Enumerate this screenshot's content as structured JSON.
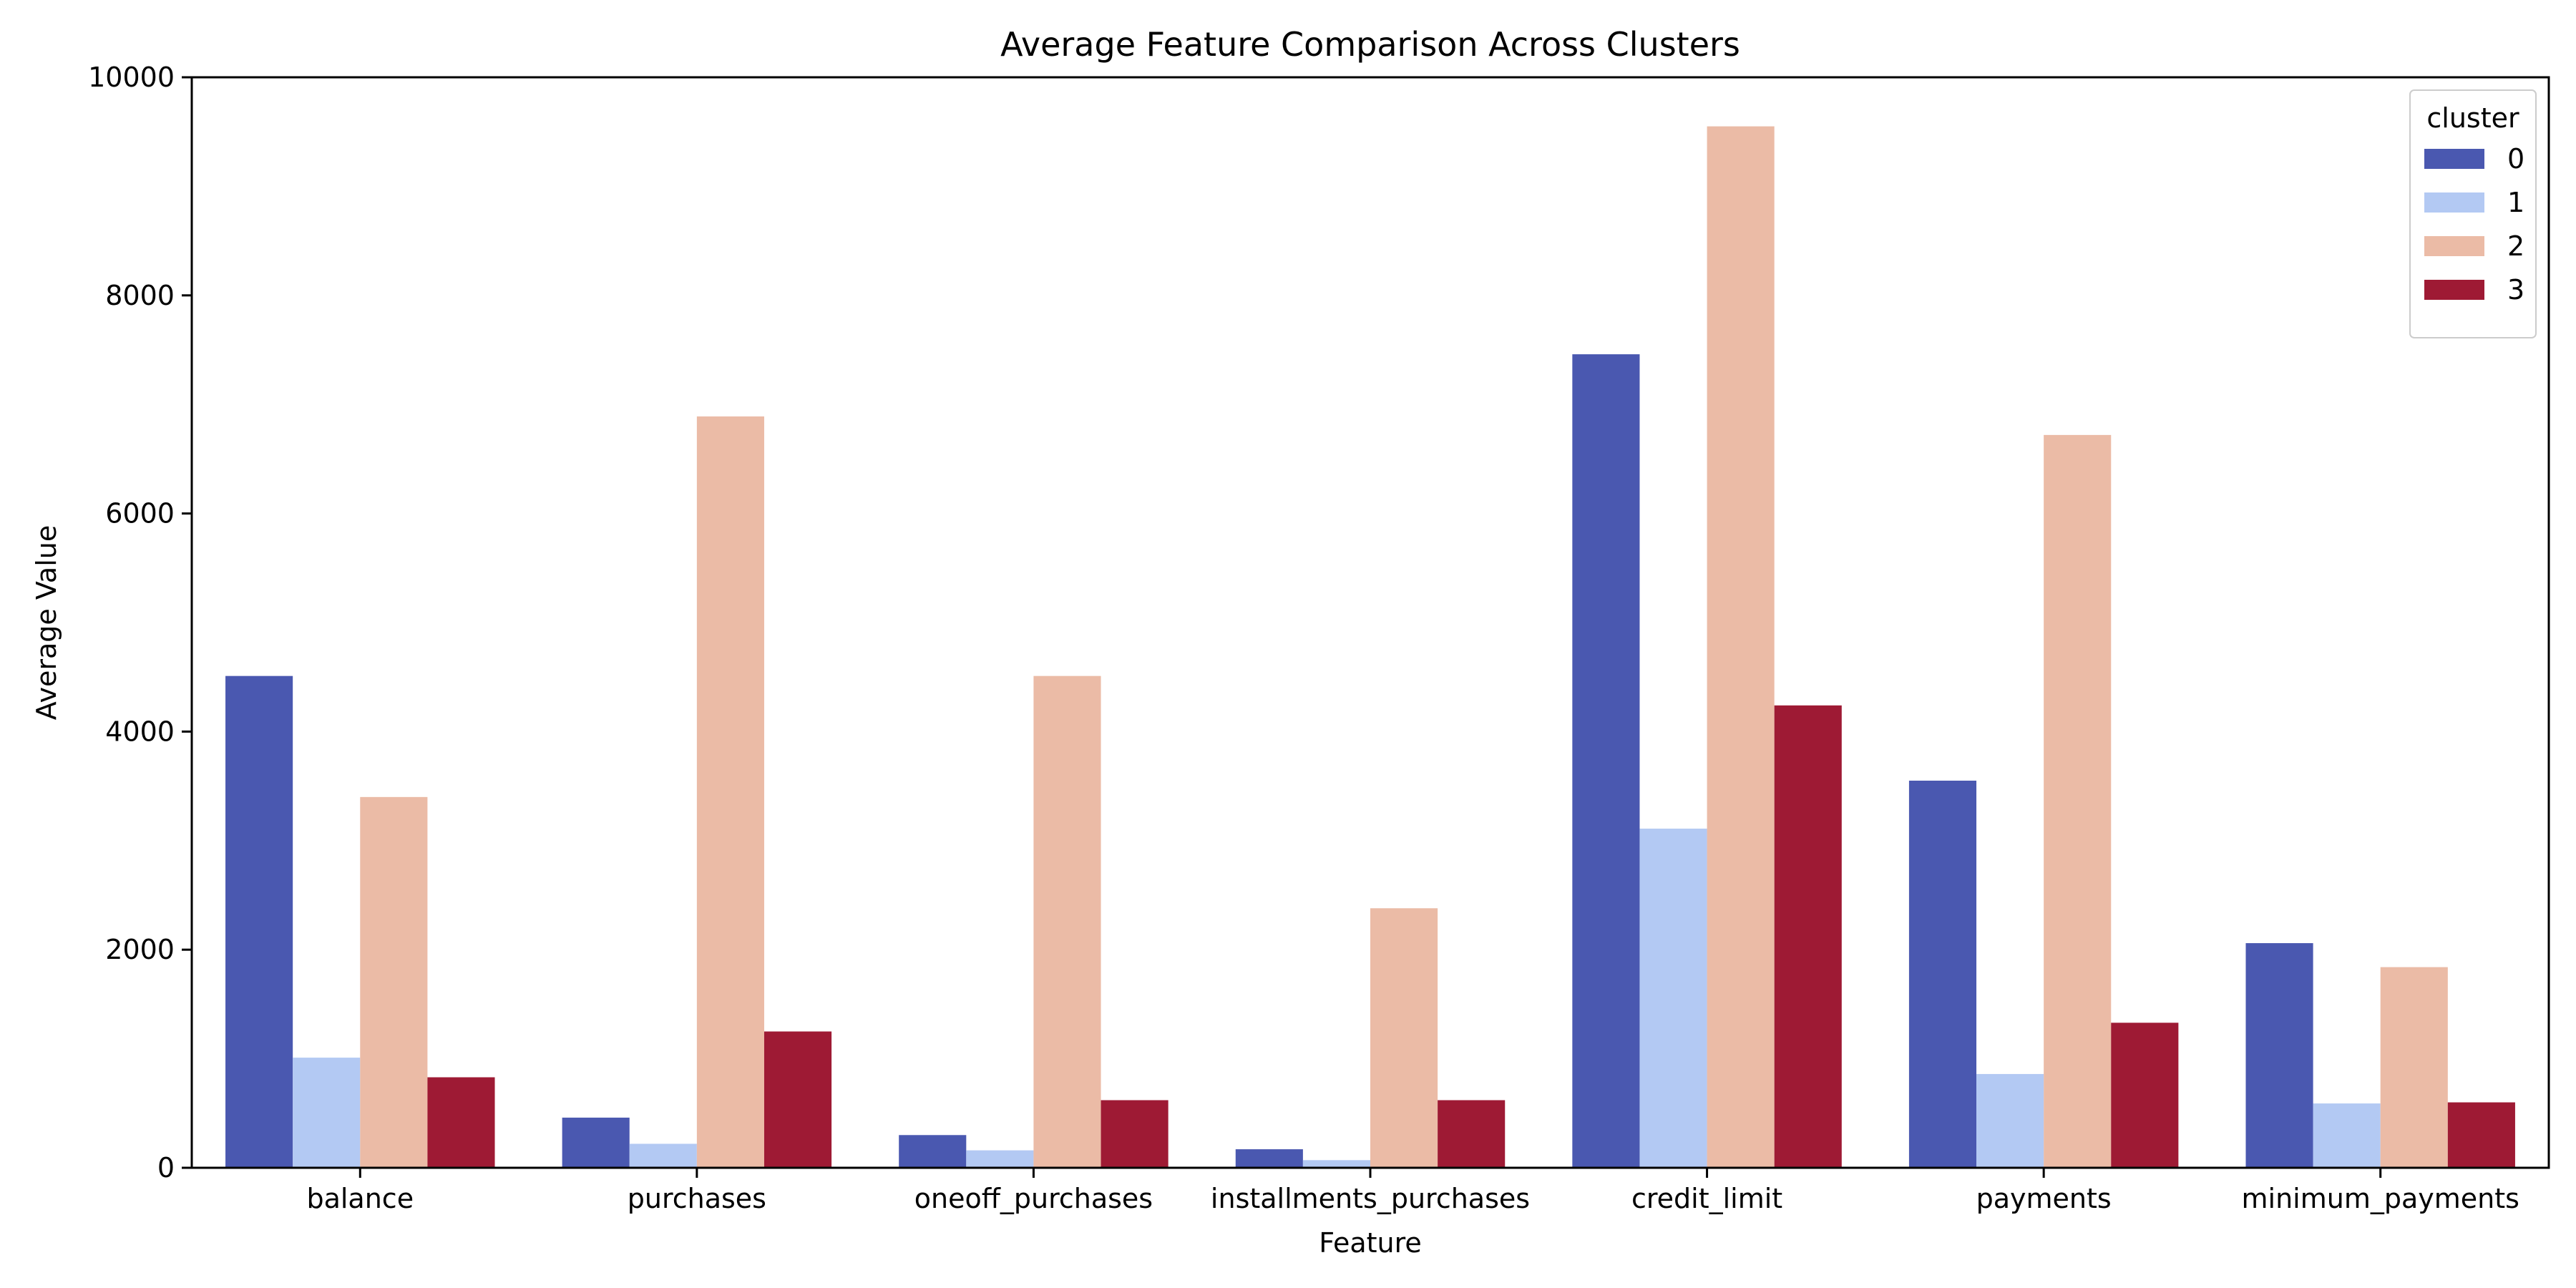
{
  "chart_data": {
    "type": "bar",
    "title": "Average Feature Comparison Across Clusters",
    "xlabel": "Feature",
    "ylabel": "Average Value",
    "categories": [
      "balance",
      "purchases",
      "oneoff_purchases",
      "installments_purchases",
      "credit_limit",
      "payments",
      "minimum_payments"
    ],
    "series": [
      {
        "name": "0",
        "color": "#4a58b0",
        "values": [
          4510,
          460,
          300,
          170,
          7460,
          3550,
          2060
        ]
      },
      {
        "name": "1",
        "color": "#b3c9f3",
        "values": [
          1010,
          220,
          160,
          70,
          3110,
          860,
          590
        ]
      },
      {
        "name": "2",
        "color": "#ebbba6",
        "values": [
          3400,
          6890,
          4510,
          2380,
          9550,
          6720,
          1840
        ]
      },
      {
        "name": "3",
        "color": "#9e1a34",
        "values": [
          830,
          1250,
          620,
          620,
          4240,
          1330,
          600
        ]
      }
    ],
    "ylim": [
      0,
      10000
    ],
    "yticks": [
      0,
      2000,
      4000,
      6000,
      8000,
      10000
    ],
    "legend": {
      "title": "cluster",
      "position": "top-right"
    },
    "grid": false
  }
}
